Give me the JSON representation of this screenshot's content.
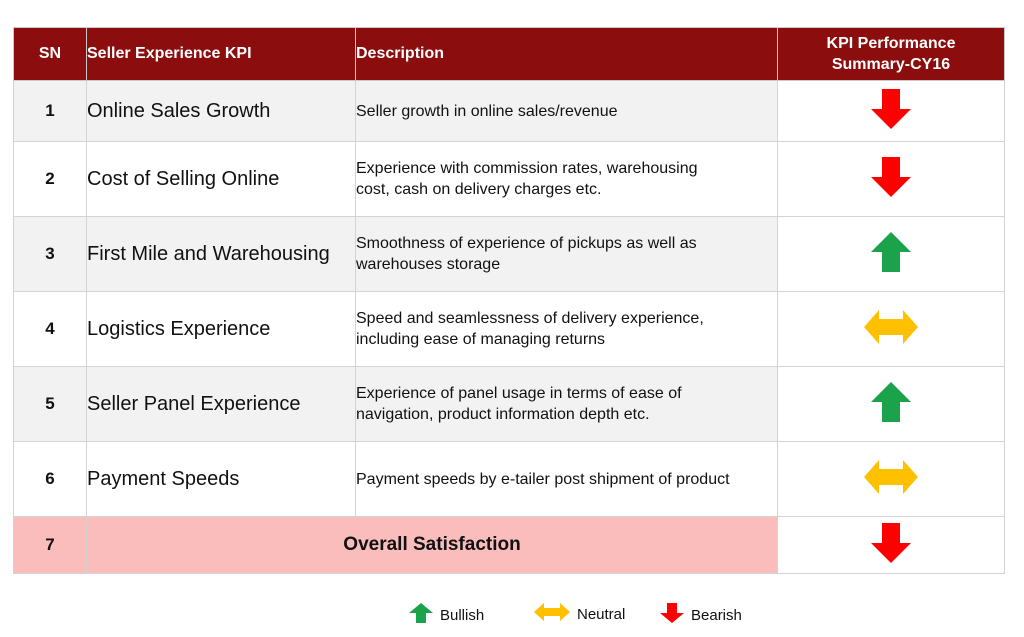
{
  "header": {
    "sn": "SN",
    "kpi": "Seller Experience KPI",
    "description": "Description",
    "performance_line1": "KPI Performance",
    "performance_line2": "Summary-CY16"
  },
  "rows": [
    {
      "sn": "1",
      "kpi": "Online Sales Growth",
      "desc_line1": "Seller growth in online sales/revenue",
      "desc_line2": "",
      "trend": "bearish"
    },
    {
      "sn": "2",
      "kpi": "Cost of Selling Online",
      "desc_line1": "Experience with commission rates, warehousing",
      "desc_line2": "cost, cash on delivery charges etc.",
      "trend": "bearish"
    },
    {
      "sn": "3",
      "kpi": "First Mile and Warehousing",
      "desc_line1": "Smoothness of  experience of pickups as well as",
      "desc_line2": "warehouses storage",
      "trend": "bullish"
    },
    {
      "sn": "4",
      "kpi": "Logistics Experience",
      "desc_line1": "Speed and seamlessness of delivery experience,",
      "desc_line2": "including ease of managing returns",
      "trend": "neutral"
    },
    {
      "sn": "5",
      "kpi": "Seller Panel Experience",
      "desc_line1": "Experience of panel usage in terms of ease of",
      "desc_line2": "navigation, product information depth etc.",
      "trend": "bullish"
    },
    {
      "sn": "6",
      "kpi": "Payment Speeds",
      "desc_line1": "Payment speeds by e-tailer post shipment of product",
      "desc_line2": "",
      "trend": "neutral"
    }
  ],
  "total": {
    "sn": "7",
    "label": "Overall Satisfaction",
    "trend": "bearish"
  },
  "legend": {
    "bullish": "Bullish",
    "neutral": "Neutral",
    "bearish": "Bearish"
  },
  "colors": {
    "header_bg": "#8b0d0d",
    "bullish": "#1aa34a",
    "neutral": "#ffc000",
    "bearish": "#ff0000",
    "total_bg": "#fbbcbc"
  },
  "icons": {
    "bullish": "arrow-up-icon",
    "neutral": "arrow-left-right-icon",
    "bearish": "arrow-down-icon"
  }
}
